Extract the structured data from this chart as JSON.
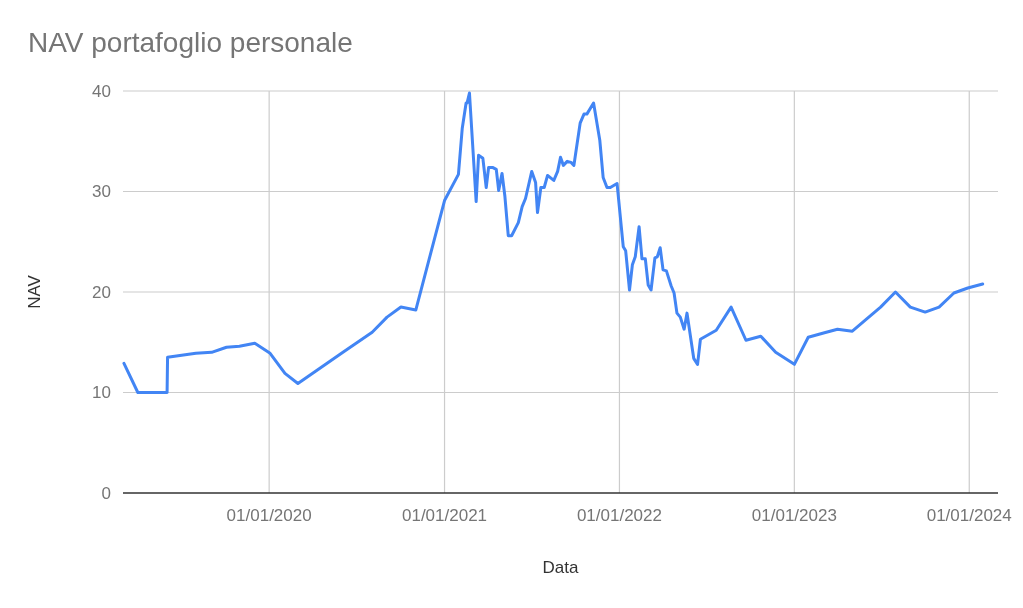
{
  "chart_data": {
    "type": "line",
    "title": "NAV portafoglio personale",
    "xlabel": "Data",
    "ylabel": "NAV",
    "x": [
      "2019-03-04",
      "2019-04-02",
      "2019-06-02",
      "2019-06-03",
      "2019-08-01",
      "2019-09-03",
      "2019-10-04",
      "2019-10-31",
      "2019-12-02",
      "2020-01-03",
      "2020-02-03",
      "2020-03-01",
      "2020-06-03",
      "2020-08-03",
      "2020-09-03",
      "2020-10-02",
      "2020-11-02",
      "2021-01-01",
      "2021-01-30",
      "2021-02-07",
      "2021-02-15",
      "2021-02-17",
      "2021-02-22",
      "2021-03-08",
      "2021-03-13",
      "2021-03-22",
      "2021-03-29",
      "2021-04-03",
      "2021-04-11",
      "2021-04-19",
      "2021-04-24",
      "2021-05-01",
      "2021-05-07",
      "2021-05-14",
      "2021-05-21",
      "2021-06-04",
      "2021-06-12",
      "2021-06-19",
      "2021-07-02",
      "2021-07-10",
      "2021-07-14",
      "2021-07-21",
      "2021-07-28",
      "2021-08-04",
      "2021-08-17",
      "2021-08-25",
      "2021-08-31",
      "2021-09-06",
      "2021-09-14",
      "2021-09-22",
      "2021-09-28",
      "2021-10-02",
      "2021-10-11",
      "2021-10-19",
      "2021-10-25",
      "2021-11-08",
      "2021-11-21",
      "2021-11-28",
      "2021-12-06",
      "2021-12-13",
      "2021-12-27",
      "2022-01-09",
      "2022-01-14",
      "2022-01-22",
      "2022-01-28",
      "2022-02-03",
      "2022-02-11",
      "2022-02-17",
      "2022-02-24",
      "2022-03-02",
      "2022-03-08",
      "2022-03-16",
      "2022-03-21",
      "2022-03-27",
      "2022-04-02",
      "2022-04-09",
      "2022-04-19",
      "2022-04-25",
      "2022-05-01",
      "2022-05-08",
      "2022-05-16",
      "2022-05-22",
      "2022-06-05",
      "2022-06-13",
      "2022-06-19",
      "2022-07-22",
      "2022-08-22",
      "2022-09-22",
      "2022-10-23",
      "2022-11-23",
      "2023-01-01",
      "2023-01-30",
      "2023-03-01",
      "2023-04-01",
      "2023-05-02",
      "2023-05-29",
      "2023-06-30",
      "2023-07-31",
      "2023-08-31",
      "2023-10-01",
      "2023-10-30",
      "2023-11-30",
      "2023-12-29",
      "2024-01-29"
    ],
    "series": [
      {
        "color": "#4285f4",
        "values": [
          12.9,
          10.0,
          10.0,
          13.5,
          13.9,
          14.0,
          14.5,
          14.6,
          14.9,
          13.9,
          11.9,
          10.9,
          14.0,
          16.0,
          17.5,
          18.5,
          18.2,
          29.1,
          31.7,
          36.3,
          38.8,
          38.8,
          39.8,
          29.0,
          33.6,
          33.3,
          30.4,
          32.4,
          32.4,
          32.2,
          30.1,
          31.8,
          29.5,
          25.6,
          25.6,
          26.9,
          28.5,
          29.3,
          32.0,
          30.9,
          27.9,
          30.4,
          30.4,
          31.6,
          31.1,
          32.0,
          33.4,
          32.6,
          33.0,
          32.9,
          32.6,
          33.9,
          36.8,
          37.7,
          37.7,
          38.8,
          35.1,
          31.4,
          30.4,
          30.4,
          30.8,
          24.5,
          24.1,
          20.2,
          22.7,
          23.5,
          26.5,
          23.3,
          23.3,
          20.7,
          20.2,
          23.4,
          23.5,
          24.4,
          22.2,
          22.1,
          20.6,
          19.9,
          17.9,
          17.5,
          16.3,
          17.9,
          13.4,
          12.8,
          15.3,
          16.2,
          18.5,
          15.2,
          15.6,
          14.0,
          12.8,
          15.5,
          15.9,
          16.3,
          16.1,
          17.2,
          18.5,
          20.0,
          18.5,
          18.0,
          18.5,
          19.9,
          20.4,
          20.8
        ]
      }
    ],
    "xlim": [
      "2019-03-02",
      "2024-03-01"
    ],
    "xticks": [
      {
        "value": "2020-01-01",
        "label": "01/01/2020"
      },
      {
        "value": "2021-01-01",
        "label": "01/01/2021"
      },
      {
        "value": "2022-01-01",
        "label": "01/01/2022"
      },
      {
        "value": "2023-01-01",
        "label": "01/01/2023"
      },
      {
        "value": "2024-01-01",
        "label": "01/01/2024"
      }
    ],
    "ylim": [
      0,
      40
    ],
    "yticks": [
      0,
      10,
      20,
      30,
      40
    ],
    "grid": true,
    "marker": "none",
    "line_style": "solid"
  }
}
